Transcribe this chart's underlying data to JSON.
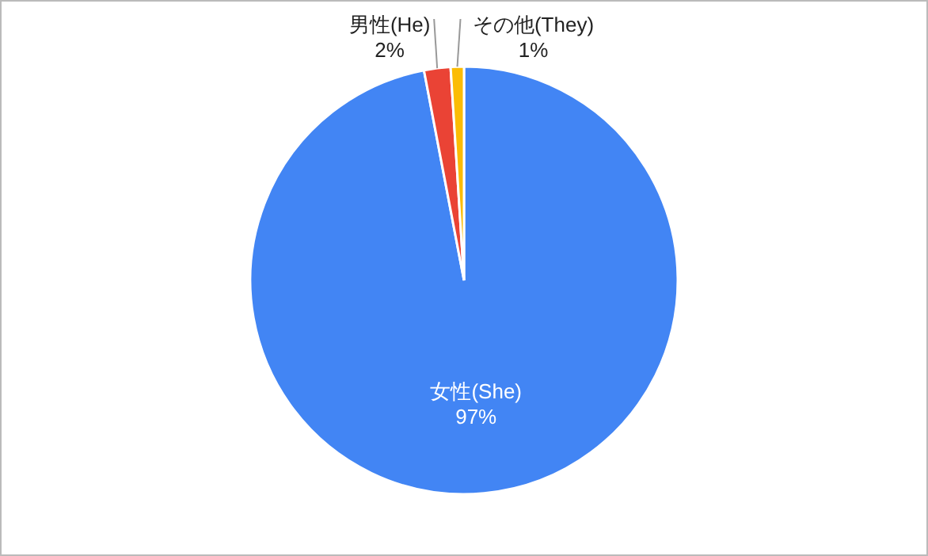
{
  "chart_data": {
    "type": "pie",
    "categories": [
      "女性(She)",
      "男性(He)",
      "その他(They)"
    ],
    "values": [
      97,
      2,
      1
    ],
    "colors": [
      "#4285f4",
      "#ea4335",
      "#fbbc04"
    ],
    "value_labels": [
      "97%",
      "2%",
      "1%"
    ]
  }
}
